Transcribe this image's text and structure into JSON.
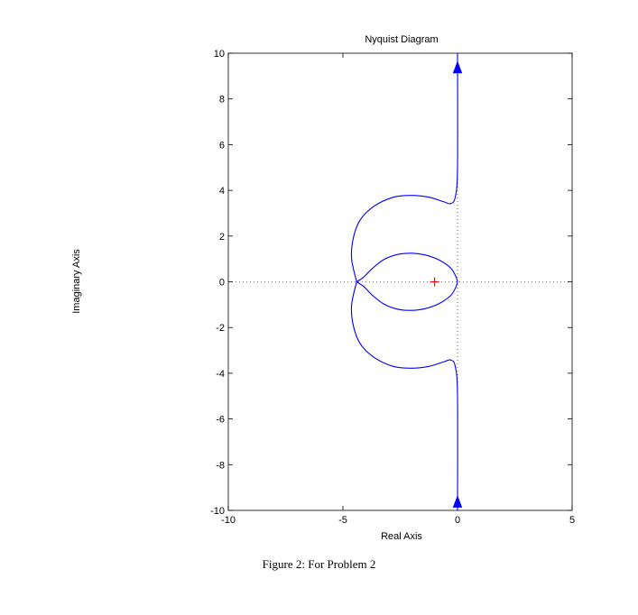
{
  "chart_data": {
    "type": "line",
    "title": "Nyquist Diagram",
    "xlabel": "Real Axis",
    "ylabel": "Imaginary Axis",
    "xlim": [
      -10,
      5
    ],
    "ylim": [
      -10,
      10
    ],
    "xticks": [
      -10,
      -5,
      0,
      5
    ],
    "yticks": [
      -10,
      -8,
      -6,
      -4,
      -2,
      0,
      2,
      4,
      6,
      8,
      10
    ],
    "grid": false,
    "series": [
      {
        "color": "#0000ff",
        "x": [
          0.0,
          -0.08,
          -0.3,
          -0.8,
          -1.4,
          -2.0,
          -2.6,
          -3.2,
          -3.7,
          -4.1,
          -4.4
        ],
        "y": [
          0.0,
          0.25,
          0.6,
          0.95,
          1.17,
          1.25,
          1.2,
          0.98,
          0.6,
          0.2,
          0.0
        ]
      },
      {
        "color": "#0000ff",
        "x": [
          -4.4,
          -4.62,
          -4.55,
          -4.25,
          -3.65,
          -2.8,
          -2.0,
          -1.25,
          -0.6,
          -0.3,
          -0.1,
          0.0,
          0.0
        ],
        "y": [
          0.0,
          1.0,
          1.9,
          2.7,
          3.3,
          3.7,
          3.78,
          3.7,
          3.5,
          3.42,
          3.7,
          5.0,
          10.0
        ]
      }
    ],
    "arrows": [
      {
        "x": 0.0,
        "y": 9.3,
        "direction": "up"
      },
      {
        "x": 0.0,
        "y": -9.7,
        "direction": "up"
      }
    ],
    "critical_point": {
      "x": -1,
      "y": 0,
      "marker": "+",
      "color": "#ff0000"
    }
  },
  "caption": "Figure 2:  For Problem 2"
}
